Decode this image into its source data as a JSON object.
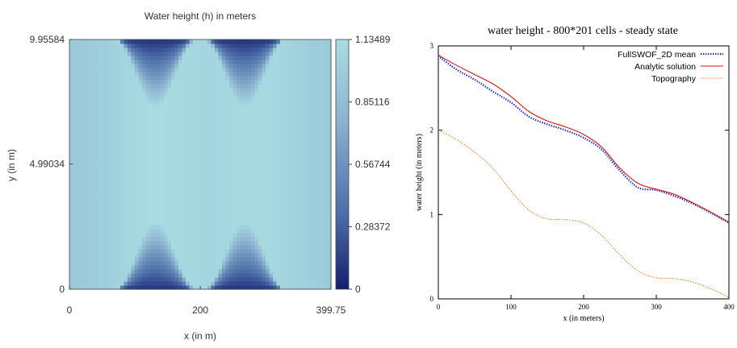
{
  "chart_data": [
    {
      "type": "heatmap",
      "title": "Water height (h) in meters",
      "xlabel": "x (in m)",
      "ylabel": "y (in m)",
      "xlim": [
        0,
        399.75
      ],
      "ylim": [
        0,
        9.95584
      ],
      "xticks": [
        "0",
        "200",
        "399.75"
      ],
      "yticks": [
        "0",
        "4.99034",
        "9.95584"
      ],
      "colorbar": {
        "min": 0,
        "max": 1.13489,
        "tick_labels": [
          "0",
          "0.28372",
          "0.56744",
          "0.85116",
          "1.13489"
        ],
        "colors": [
          "#151e6e",
          "#4d6ea8",
          "#8fb7d2",
          "#a8dde2"
        ]
      },
      "column_profile": {
        "x": [
          0,
          40,
          80,
          110,
          130,
          150,
          170,
          190,
          210,
          230,
          250,
          270,
          290,
          310,
          340,
          370,
          399.75
        ],
        "h": [
          0.95,
          0.98,
          1.05,
          1.1,
          1.13,
          1.12,
          1.1,
          1.08,
          1.07,
          1.08,
          1.1,
          1.12,
          1.11,
          1.09,
          1.05,
          1.0,
          0.96
        ]
      },
      "bumps": [
        {
          "x": 132,
          "amplitude": 0.27,
          "half_width": 62
        },
        {
          "x": 268,
          "amplitude": 0.27,
          "half_width": 62
        }
      ]
    },
    {
      "type": "line",
      "title": "water height - 800*201 cells - steady state",
      "xlabel": "x (in meters)",
      "ylabel": "water height (in meters)",
      "xlim": [
        0,
        400
      ],
      "ylim": [
        0,
        3
      ],
      "xticks": [
        0,
        100,
        200,
        300,
        400
      ],
      "yticks": [
        0,
        1,
        2,
        3
      ],
      "legend": "top-right",
      "series": [
        {
          "name": "FullSWOF_2D mean",
          "color": "#1c2bd0",
          "style": "dotted",
          "x": [
            0,
            25,
            50,
            75,
            100,
            125,
            150,
            175,
            200,
            225,
            250,
            275,
            300,
            325,
            350,
            375,
            400
          ],
          "y": [
            2.88,
            2.72,
            2.6,
            2.46,
            2.33,
            2.16,
            2.07,
            2.0,
            1.91,
            1.77,
            1.52,
            1.32,
            1.29,
            1.22,
            1.13,
            1.02,
            0.9
          ]
        },
        {
          "name": "Analytic solution",
          "color": "#dd1111",
          "style": "solid",
          "x": [
            0,
            25,
            50,
            75,
            100,
            125,
            150,
            175,
            200,
            225,
            250,
            275,
            300,
            325,
            350,
            375,
            400
          ],
          "y": [
            2.89,
            2.77,
            2.66,
            2.55,
            2.4,
            2.22,
            2.11,
            2.04,
            1.95,
            1.8,
            1.55,
            1.37,
            1.3,
            1.24,
            1.14,
            1.03,
            0.91
          ]
        },
        {
          "name": "Topography",
          "color": "#ee7722",
          "style": "dotted",
          "x": [
            0,
            25,
            50,
            75,
            100,
            125,
            150,
            175,
            200,
            225,
            250,
            275,
            300,
            325,
            350,
            375,
            400
          ],
          "y": [
            2.0,
            1.89,
            1.74,
            1.55,
            1.28,
            1.05,
            0.95,
            0.94,
            0.9,
            0.75,
            0.52,
            0.33,
            0.25,
            0.24,
            0.2,
            0.12,
            0.02
          ]
        }
      ]
    }
  ]
}
